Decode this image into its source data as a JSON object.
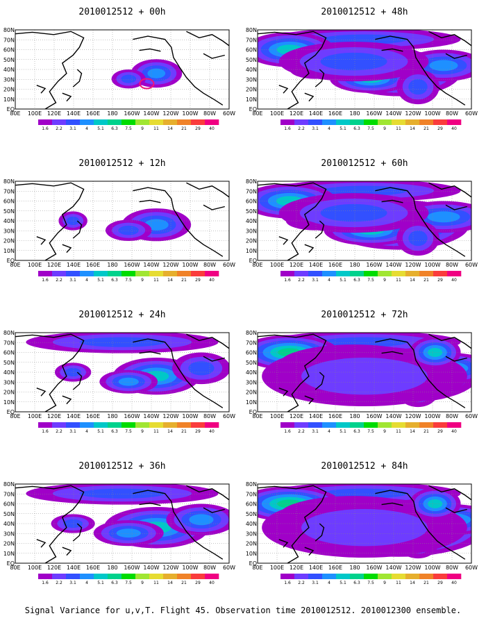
{
  "map": {
    "lon_labels": [
      "80E",
      "100E",
      "120E",
      "140E",
      "160E",
      "180",
      "160W",
      "140W",
      "120W",
      "100W",
      "80W",
      "60W"
    ],
    "lat_labels": [
      "80N",
      "70N",
      "60N",
      "50N",
      "40N",
      "30N",
      "20N",
      "10N",
      "EQ"
    ],
    "colorbar": {
      "levels": [
        "1.6",
        "2.2",
        "3.1",
        "4",
        "5.1",
        "6.3",
        "7.5",
        "9",
        "11",
        "14",
        "21",
        "29",
        "40"
      ],
      "colors": [
        "#a000c8",
        "#6e3cff",
        "#3250ff",
        "#1e90ff",
        "#00c8c8",
        "#00d28c",
        "#00dc00",
        "#a0e632",
        "#e6dc32",
        "#e6af2d",
        "#f08228",
        "#fa3c3c",
        "#f00082"
      ]
    },
    "panels": [
      {
        "id": "p00",
        "title": "2010012512 + 00h",
        "level": 0
      },
      {
        "id": "p48",
        "title": "2010012512 + 48h",
        "level": 4
      },
      {
        "id": "p12",
        "title": "2010012512 + 12h",
        "level": 1
      },
      {
        "id": "p60",
        "title": "2010012512 + 60h",
        "level": 5
      },
      {
        "id": "p24",
        "title": "2010012512 + 24h",
        "level": 2
      },
      {
        "id": "p72",
        "title": "2010012512 + 72h",
        "level": 6
      },
      {
        "id": "p36",
        "title": "2010012512 + 36h",
        "level": 3
      },
      {
        "id": "p84",
        "title": "2010012512 + 84h",
        "level": 7
      }
    ]
  },
  "caption": "Signal Variance for u,v,T. Flight 45. Observation time 2010012512. 2010012300 ensemble."
}
